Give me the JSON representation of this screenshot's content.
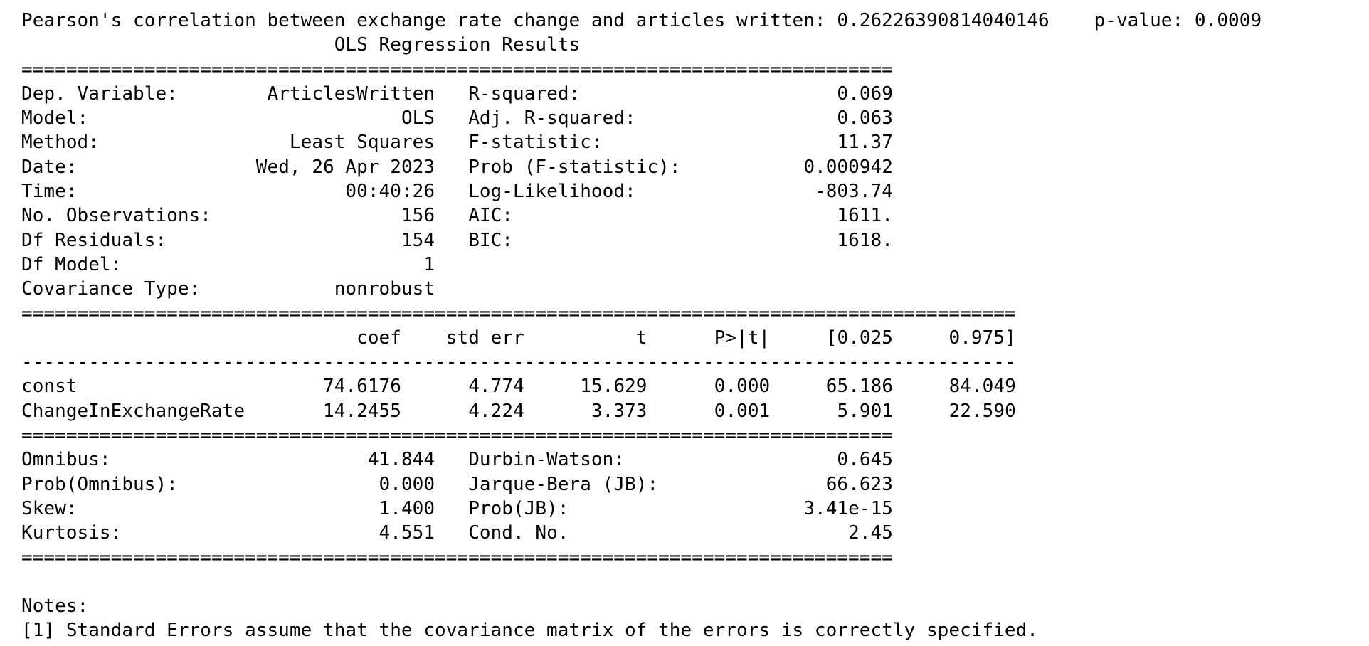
{
  "pearson": {
    "label": "Pearson's correlation between exchange rate change and articles written:",
    "value": "0.26226390814040146",
    "p_label": "p-value:",
    "p_value": "0.0009"
  },
  "title": "OLS Regression Results",
  "summary": {
    "left": [
      {
        "label": "Dep. Variable:",
        "value": "ArticlesWritten"
      },
      {
        "label": "Model:",
        "value": "OLS"
      },
      {
        "label": "Method:",
        "value": "Least Squares"
      },
      {
        "label": "Date:",
        "value": "Wed, 26 Apr 2023"
      },
      {
        "label": "Time:",
        "value": "00:40:26"
      },
      {
        "label": "No. Observations:",
        "value": "156"
      },
      {
        "label": "Df Residuals:",
        "value": "154"
      },
      {
        "label": "Df Model:",
        "value": "1"
      },
      {
        "label": "Covariance Type:",
        "value": "nonrobust"
      }
    ],
    "right": [
      {
        "label": "R-squared:",
        "value": "0.069"
      },
      {
        "label": "Adj. R-squared:",
        "value": "0.063"
      },
      {
        "label": "F-statistic:",
        "value": "11.37"
      },
      {
        "label": "Prob (F-statistic):",
        "value": "0.000942"
      },
      {
        "label": "Log-Likelihood:",
        "value": "-803.74"
      },
      {
        "label": "AIC:",
        "value": "1611."
      },
      {
        "label": "BIC:",
        "value": "1618."
      }
    ]
  },
  "coef_table": {
    "headers": [
      "coef",
      "std err",
      "t",
      "P>|t|",
      "[0.025",
      "0.975]"
    ],
    "rows": [
      {
        "name": "const",
        "values": [
          "74.6176",
          "4.774",
          "15.629",
          "0.000",
          "65.186",
          "84.049"
        ]
      },
      {
        "name": "ChangeInExchangeRate",
        "values": [
          "14.2455",
          "4.224",
          "3.373",
          "0.001",
          "5.901",
          "22.590"
        ]
      }
    ]
  },
  "diagnostics": {
    "left": [
      {
        "label": "Omnibus:",
        "value": "41.844"
      },
      {
        "label": "Prob(Omnibus):",
        "value": "0.000"
      },
      {
        "label": "Skew:",
        "value": "1.400"
      },
      {
        "label": "Kurtosis:",
        "value": "4.551"
      }
    ],
    "right": [
      {
        "label": "Durbin-Watson:",
        "value": "0.645"
      },
      {
        "label": "Jarque-Bera (JB):",
        "value": "66.623"
      },
      {
        "label": "Prob(JB):",
        "value": "3.41e-15"
      },
      {
        "label": "Cond. No.",
        "value": "2.45"
      }
    ]
  },
  "notes": {
    "heading": "Notes:",
    "items": [
      "[1] Standard Errors assume that the covariance matrix of the errors is correctly specified."
    ]
  }
}
